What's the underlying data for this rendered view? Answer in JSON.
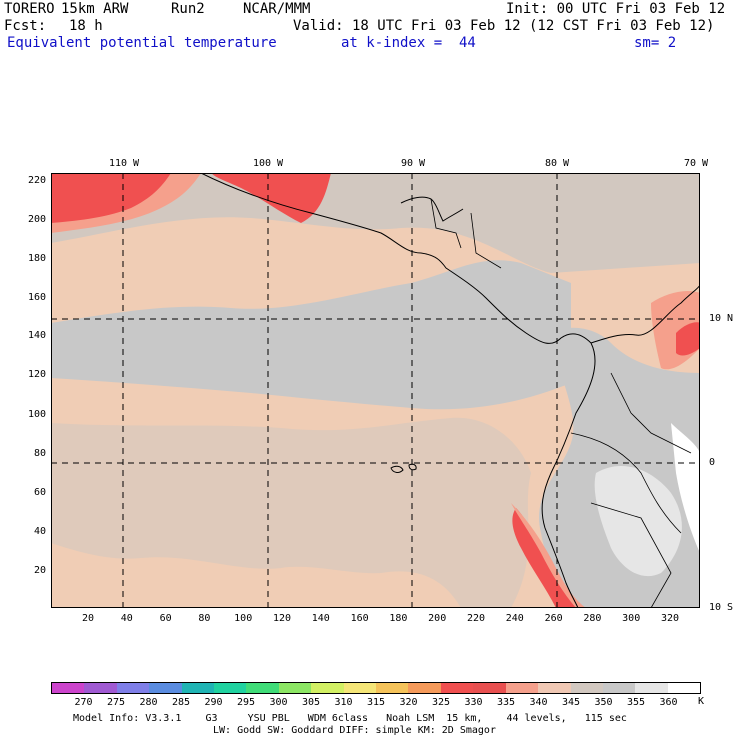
{
  "header": {
    "model": "TORERO",
    "resolution": "15km ARW",
    "run": "Run2",
    "source": "NCAR/MMM",
    "init": "Init: 00 UTC Fri 03 Feb 12",
    "forecast_label": "Fcst:",
    "forecast_hours": "18 h",
    "valid": "Valid: 18 UTC Fri 03 Feb 12 (12 CST Fri 03 Feb 12)",
    "field": "Equivalent potential temperature",
    "level": "at k-index =  44",
    "smoothing": "sm= 2"
  },
  "map": {
    "top_longitude_labels": [
      "110 W",
      "100 W",
      "90 W",
      "80 W",
      "70 W"
    ],
    "right_latitude_labels": [
      "10 N",
      "0",
      "10 S"
    ],
    "y_ticks": [
      "220",
      "200",
      "180",
      "160",
      "140",
      "120",
      "100",
      "80",
      "60",
      "40",
      "20"
    ],
    "x_ticks": [
      "20",
      "40",
      "60",
      "80",
      "100",
      "120",
      "140",
      "160",
      "180",
      "200",
      "220",
      "240",
      "260",
      "280",
      "300",
      "320"
    ]
  },
  "legend": {
    "values": [
      "270",
      "275",
      "280",
      "285",
      "290",
      "295",
      "300",
      "305",
      "310",
      "315",
      "320",
      "325",
      "330",
      "335",
      "340",
      "345",
      "350",
      "355",
      "360"
    ],
    "unit": "K",
    "colors": [
      "#cc44cc",
      "#a05ad2",
      "#7f7fe8",
      "#5a8ce0",
      "#20b4b4",
      "#20d2a0",
      "#40dc78",
      "#8ce664",
      "#d2f064",
      "#f5e678",
      "#f5c35a",
      "#f59a5a",
      "#f05050",
      "#e85050",
      "#f5a08c",
      "#f0c8b4",
      "#d2c8c0",
      "#c8c8c8",
      "#e6e6e6",
      "#ffffff"
    ]
  },
  "footer": {
    "line1": "Model Info: V3.3.1    G3     YSU PBL   WDM 6class   Noah LSM  15 km,    44 levels,   115 sec",
    "line2": "LW: Godd SW: Goddard DIFF: simple KM: 2D Smagor"
  },
  "colors": {
    "ocean_base": "#f0cdb5",
    "cool_band": "#c8c8c8",
    "warm_tint": "#d2c8c0",
    "hot_1": "#f5a08c",
    "hot_2": "#f05050",
    "header_blue": "#1010c8"
  }
}
